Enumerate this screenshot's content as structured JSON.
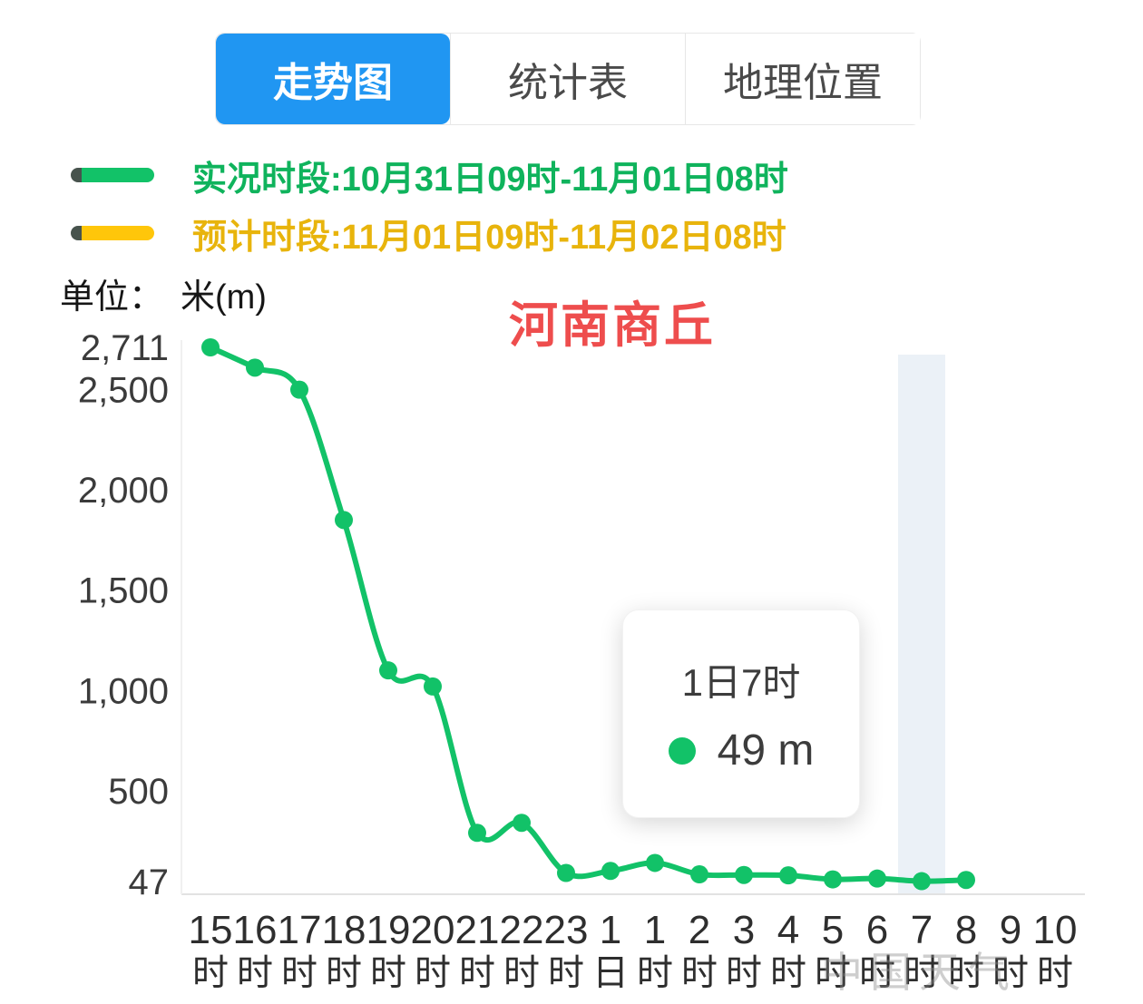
{
  "tabs": [
    {
      "label": "走势图",
      "active": true
    },
    {
      "label": "统计表",
      "active": false
    },
    {
      "label": "地理位置",
      "active": false
    }
  ],
  "legend": {
    "items": [
      {
        "label": "实况时段:10月31日09时-11月01日08时",
        "color": "#12c268",
        "text_color": "#0fb35c"
      },
      {
        "label": "预计时段:11月01日09时-11月02日08时",
        "color": "#ffc60a",
        "text_color": "#e8b40c"
      }
    ]
  },
  "unit_label": "单位：　米(m)",
  "tooltip": {
    "time": "1日7时",
    "value": "49 m"
  },
  "watermark": "中国天气",
  "colors": {
    "tab_active": "#2096f2",
    "title_red": "#ee4d4d",
    "series_green": "#12c268",
    "forecast_yellow": "#ffc60a",
    "highlight_band": "#ebf1f7"
  },
  "chart_data": {
    "type": "line",
    "title": "河南商丘",
    "ylabel": "米(m)",
    "ylim": [
      47,
      2711
    ],
    "grid": false,
    "legend_position": "top-left",
    "y_ticks": [
      {
        "value": 2711,
        "label": "2,711"
      },
      {
        "value": 2500,
        "label": "2,500"
      },
      {
        "value": 2000,
        "label": "2,000"
      },
      {
        "value": 1500,
        "label": "1,500"
      },
      {
        "value": 1000,
        "label": "1,000"
      },
      {
        "value": 500,
        "label": "500"
      },
      {
        "value": 47,
        "label": "47"
      }
    ],
    "x_labels": [
      [
        "15",
        "时"
      ],
      [
        "16",
        "时"
      ],
      [
        "17",
        "时"
      ],
      [
        "18",
        "时"
      ],
      [
        "19",
        "时"
      ],
      [
        "20",
        "时"
      ],
      [
        "21",
        "时"
      ],
      [
        "22",
        "时"
      ],
      [
        "23",
        "时"
      ],
      [
        "1",
        "日"
      ],
      [
        "1",
        "时"
      ],
      [
        "2",
        "时"
      ],
      [
        "3",
        "时"
      ],
      [
        "4",
        "时"
      ],
      [
        "5",
        "时"
      ],
      [
        "6",
        "时"
      ],
      [
        "7",
        "时"
      ],
      [
        "8",
        "时"
      ],
      [
        "9",
        "时"
      ],
      [
        "10",
        "时"
      ]
    ],
    "series": [
      {
        "name": "实况时段",
        "color": "#12c268",
        "values": [
          2711,
          2610,
          2500,
          1850,
          1100,
          1020,
          290,
          340,
          90,
          100,
          140,
          83,
          80,
          78,
          58,
          62,
          49,
          55
        ]
      }
    ],
    "highlight_index": 16,
    "highlight_color": "#ebf1f7",
    "tooltip_point": {
      "x_label": "1日7时",
      "value": 49,
      "unit": "m"
    }
  }
}
